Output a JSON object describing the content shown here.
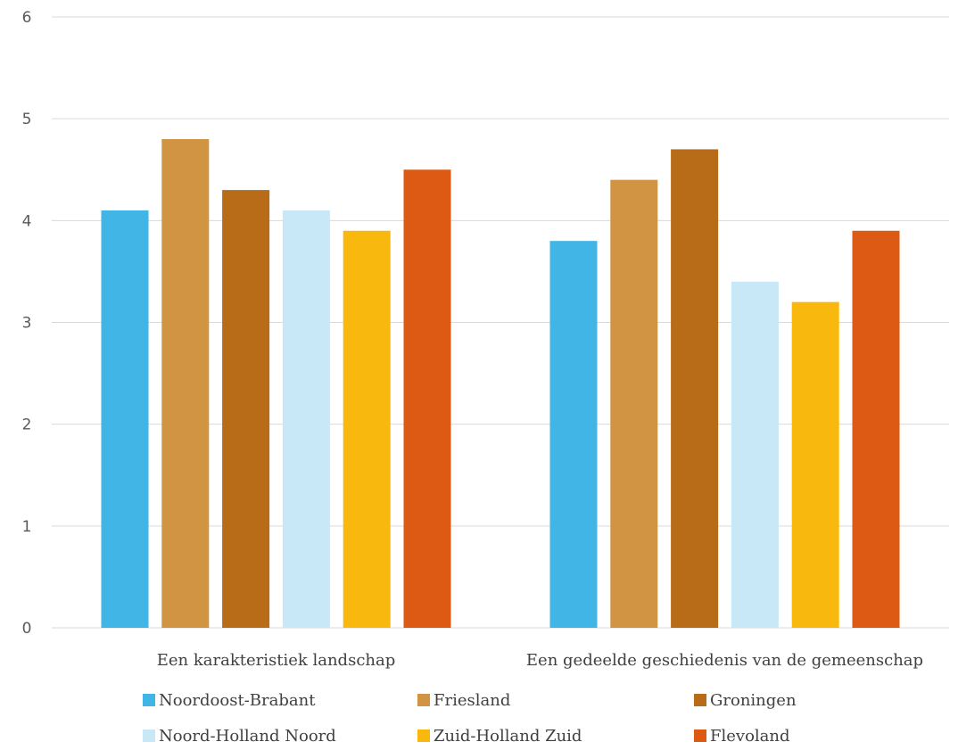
{
  "chart_data": {
    "type": "bar",
    "title": "",
    "xlabel": "",
    "ylabel": "",
    "ylim": [
      0,
      6
    ],
    "yticks": [
      0,
      1,
      2,
      3,
      4,
      5,
      6
    ],
    "grid": true,
    "legend_position": "bottom",
    "categories": [
      "Een karakteristiek landschap",
      "Een gedeelde geschiedenis van de gemeenschap"
    ],
    "series": [
      {
        "name": "Noordoost-Brabant",
        "color": "#41B6E6",
        "values": [
          4.1,
          3.8
        ]
      },
      {
        "name": "Friesland",
        "color": "#D09442",
        "values": [
          4.8,
          4.4
        ]
      },
      {
        "name": "Groningen",
        "color": "#B86C17",
        "values": [
          4.3,
          4.7
        ]
      },
      {
        "name": "Noord-Holland Noord",
        "color": "#C8E8F8",
        "values": [
          4.1,
          3.4
        ]
      },
      {
        "name": "Zuid-Holland Zuid",
        "color": "#F9B80E",
        "values": [
          3.9,
          3.2
        ]
      },
      {
        "name": "Flevoland",
        "color": "#DC5A13",
        "values": [
          4.5,
          3.9
        ]
      }
    ]
  }
}
